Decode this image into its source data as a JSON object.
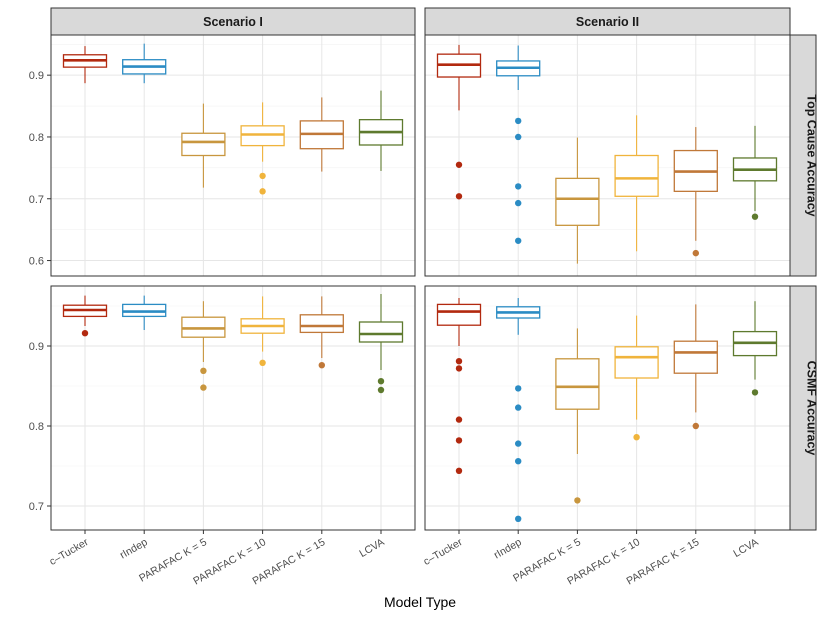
{
  "chart_data": {
    "type": "boxplot",
    "xlabel": "Model Type",
    "categories": [
      "c–Tucker",
      "rIndep",
      "PARAFAC K = 5",
      "PARAFAC K = 10",
      "PARAFAC K = 15",
      "LCVA"
    ],
    "colors": [
      "#b2290f",
      "#2b8cc4",
      "#c8963e",
      "#f0b43c",
      "#c07838",
      "#5e7a2e"
    ],
    "columns": [
      "Scenario I",
      "Scenario II"
    ],
    "rows": [
      {
        "label": "Top Cause Accuracy",
        "ylim": [
          0.575,
          0.965
        ],
        "ticks": [
          0.6,
          0.7,
          0.8,
          0.9
        ],
        "tick_labels": [
          "0.6",
          "0.7",
          "0.8",
          "0.9"
        ]
      },
      {
        "label": "CSMF Accuracy",
        "ylim": [
          0.67,
          0.975
        ],
        "ticks": [
          0.7,
          0.8,
          0.9
        ],
        "tick_labels": [
          "0.7",
          "0.8",
          "0.9"
        ]
      }
    ],
    "panels": [
      {
        "row": 0,
        "col": 0,
        "boxes": [
          {
            "q1": 0.913,
            "median": 0.924,
            "q3": 0.933,
            "low": 0.887,
            "high": 0.947,
            "outliers": []
          },
          {
            "q1": 0.902,
            "median": 0.914,
            "q3": 0.925,
            "low": 0.887,
            "high": 0.951,
            "outliers": []
          },
          {
            "q1": 0.77,
            "median": 0.792,
            "q3": 0.806,
            "low": 0.718,
            "high": 0.854,
            "outliers": []
          },
          {
            "q1": 0.786,
            "median": 0.804,
            "q3": 0.818,
            "low": 0.76,
            "high": 0.856,
            "outliers": [
              0.737,
              0.712
            ]
          },
          {
            "q1": 0.781,
            "median": 0.805,
            "q3": 0.826,
            "low": 0.744,
            "high": 0.864,
            "outliers": []
          },
          {
            "q1": 0.787,
            "median": 0.808,
            "q3": 0.828,
            "low": 0.745,
            "high": 0.875,
            "outliers": []
          }
        ]
      },
      {
        "row": 0,
        "col": 1,
        "boxes": [
          {
            "q1": 0.897,
            "median": 0.917,
            "q3": 0.934,
            "low": 0.843,
            "high": 0.949,
            "outliers": [
              0.755,
              0.704
            ]
          },
          {
            "q1": 0.899,
            "median": 0.912,
            "q3": 0.923,
            "low": 0.876,
            "high": 0.948,
            "outliers": [
              0.826,
              0.8,
              0.72,
              0.693,
              0.632
            ]
          },
          {
            "q1": 0.657,
            "median": 0.7,
            "q3": 0.733,
            "low": 0.595,
            "high": 0.799,
            "outliers": []
          },
          {
            "q1": 0.704,
            "median": 0.733,
            "q3": 0.77,
            "low": 0.615,
            "high": 0.835,
            "outliers": []
          },
          {
            "q1": 0.712,
            "median": 0.744,
            "q3": 0.778,
            "low": 0.632,
            "high": 0.816,
            "outliers": [
              0.612
            ]
          },
          {
            "q1": 0.729,
            "median": 0.747,
            "q3": 0.766,
            "low": 0.68,
            "high": 0.818,
            "outliers": [
              0.671
            ]
          }
        ]
      },
      {
        "row": 1,
        "col": 0,
        "boxes": [
          {
            "q1": 0.937,
            "median": 0.945,
            "q3": 0.951,
            "low": 0.925,
            "high": 0.963,
            "outliers": [
              0.916
            ]
          },
          {
            "q1": 0.937,
            "median": 0.943,
            "q3": 0.952,
            "low": 0.92,
            "high": 0.963,
            "outliers": []
          },
          {
            "q1": 0.911,
            "median": 0.922,
            "q3": 0.936,
            "low": 0.88,
            "high": 0.956,
            "outliers": [
              0.869,
              0.848
            ]
          },
          {
            "q1": 0.916,
            "median": 0.925,
            "q3": 0.934,
            "low": 0.893,
            "high": 0.962,
            "outliers": [
              0.879
            ]
          },
          {
            "q1": 0.917,
            "median": 0.925,
            "q3": 0.939,
            "low": 0.885,
            "high": 0.962,
            "outliers": [
              0.876
            ]
          },
          {
            "q1": 0.905,
            "median": 0.915,
            "q3": 0.93,
            "low": 0.87,
            "high": 0.965,
            "outliers": [
              0.856,
              0.845
            ]
          }
        ]
      },
      {
        "row": 1,
        "col": 1,
        "boxes": [
          {
            "q1": 0.926,
            "median": 0.943,
            "q3": 0.952,
            "low": 0.9,
            "high": 0.96,
            "outliers": [
              0.881,
              0.872,
              0.808,
              0.782,
              0.744
            ]
          },
          {
            "q1": 0.935,
            "median": 0.942,
            "q3": 0.949,
            "low": 0.914,
            "high": 0.96,
            "outliers": [
              0.847,
              0.823,
              0.778,
              0.756,
              0.684
            ]
          },
          {
            "q1": 0.821,
            "median": 0.849,
            "q3": 0.884,
            "low": 0.765,
            "high": 0.922,
            "outliers": [
              0.707
            ]
          },
          {
            "q1": 0.86,
            "median": 0.886,
            "q3": 0.899,
            "low": 0.808,
            "high": 0.938,
            "outliers": [
              0.786
            ]
          },
          {
            "q1": 0.866,
            "median": 0.892,
            "q3": 0.906,
            "low": 0.817,
            "high": 0.952,
            "outliers": [
              0.8
            ]
          },
          {
            "q1": 0.888,
            "median": 0.904,
            "q3": 0.918,
            "low": 0.858,
            "high": 0.956,
            "outliers": [
              0.842
            ]
          }
        ]
      }
    ]
  }
}
